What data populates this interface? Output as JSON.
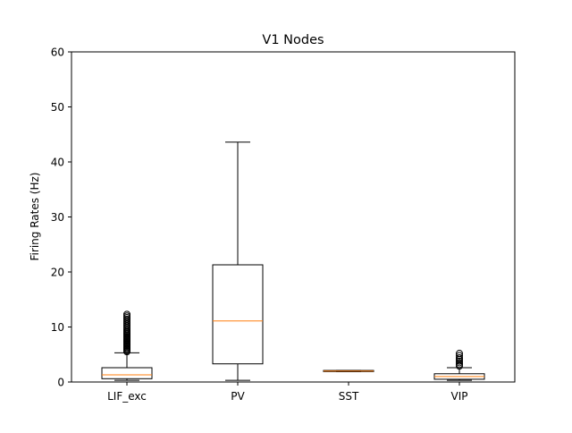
{
  "chart_data": {
    "type": "boxplot",
    "title": "V1 Nodes",
    "xlabel": "",
    "ylabel": "Firing Rates (Hz)",
    "ylim": [
      0,
      60
    ],
    "yticks": [
      0,
      10,
      20,
      30,
      40,
      50,
      60
    ],
    "grid": false,
    "categories": [
      "LIF_exc",
      "PV",
      "SST",
      "VIP"
    ],
    "boxes": [
      {
        "name": "LIF_exc",
        "whisker_low": 0.3,
        "q1": 0.6,
        "median": 1.3,
        "q3": 2.6,
        "whisker_high": 5.3,
        "outliers": [
          5.5,
          5.7,
          5.9,
          6.1,
          6.3,
          6.5,
          6.7,
          6.9,
          7.1,
          7.3,
          7.5,
          7.7,
          7.9,
          8.1,
          8.3,
          8.5,
          8.7,
          8.9,
          9.1,
          9.3,
          9.6,
          9.9,
          10.2,
          10.5,
          10.8,
          11.1,
          11.4,
          11.7,
          12.0,
          12.3
        ]
      },
      {
        "name": "PV",
        "whisker_low": 0.3,
        "q1": 3.3,
        "median": 11.1,
        "q3": 21.3,
        "whisker_high": 43.6,
        "outliers": []
      },
      {
        "name": "SST",
        "whisker_low": 1.9,
        "q1": 1.9,
        "median": 2.0,
        "q3": 2.1,
        "whisker_high": 2.1,
        "outliers": []
      },
      {
        "name": "VIP",
        "whisker_low": 0.3,
        "q1": 0.5,
        "median": 1.0,
        "q3": 1.5,
        "whisker_high": 2.6,
        "outliers": [
          2.9,
          3.2,
          3.5,
          3.8,
          4.1,
          4.4,
          4.8,
          5.2
        ]
      }
    ],
    "colors": {
      "box": "#000000",
      "median": "#ff7f0e",
      "outlier": "#000000",
      "background": "#ffffff"
    }
  }
}
